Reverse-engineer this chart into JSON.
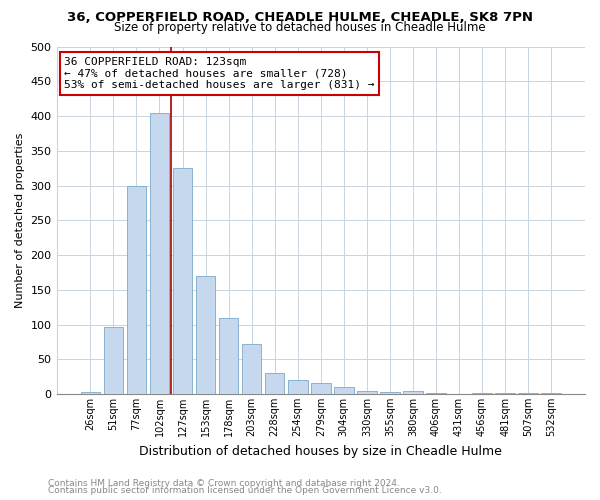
{
  "title_line1": "36, COPPERFIELD ROAD, CHEADLE HULME, CHEADLE, SK8 7PN",
  "title_line2": "Size of property relative to detached houses in Cheadle Hulme",
  "xlabel": "Distribution of detached houses by size in Cheadle Hulme",
  "ylabel": "Number of detached properties",
  "bin_labels": [
    "26sqm",
    "51sqm",
    "77sqm",
    "102sqm",
    "127sqm",
    "153sqm",
    "178sqm",
    "203sqm",
    "228sqm",
    "254sqm",
    "279sqm",
    "304sqm",
    "330sqm",
    "355sqm",
    "380sqm",
    "406sqm",
    "431sqm",
    "456sqm",
    "481sqm",
    "507sqm",
    "532sqm"
  ],
  "bar_values": [
    3,
    97,
    300,
    405,
    325,
    170,
    110,
    72,
    30,
    20,
    16,
    10,
    5,
    3,
    4,
    2,
    0,
    1,
    2,
    2,
    1
  ],
  "bar_color": "#c5d8ee",
  "bar_edge_color": "#7aaacc",
  "vline_color": "#aa0000",
  "vline_x_idx": 4,
  "annotation_title": "36 COPPERFIELD ROAD: 123sqm",
  "annotation_line2": "← 47% of detached houses are smaller (728)",
  "annotation_line3": "53% of semi-detached houses are larger (831) →",
  "annotation_box_facecolor": "#ffffff",
  "annotation_box_edgecolor": "#cc0000",
  "ylim": [
    0,
    500
  ],
  "yticks": [
    0,
    50,
    100,
    150,
    200,
    250,
    300,
    350,
    400,
    450,
    500
  ],
  "background_color": "#ffffff",
  "plot_background": "#ffffff",
  "grid_color": "#c8d4e0",
  "footer_line1": "Contains HM Land Registry data © Crown copyright and database right 2024.",
  "footer_line2": "Contains public sector information licensed under the Open Government Licence v3.0.",
  "title_fontsize": 9.5,
  "subtitle_fontsize": 8.5,
  "ylabel_fontsize": 8,
  "xlabel_fontsize": 9,
  "tick_fontsize": 7,
  "ytick_fontsize": 8,
  "annot_fontsize": 8,
  "footer_fontsize": 6.5
}
